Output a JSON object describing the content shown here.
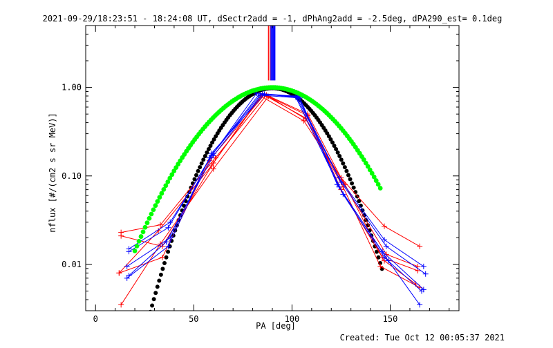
{
  "header": {
    "title": "2021-09-29/18:23:51 - 18:24:08 UT, dSectr2add = -1, dPhAng2add = -2.5deg, dPA290_est=  0.1deg"
  },
  "footer": {
    "created": "Created: Tue Oct 12 00:05:37 2021"
  },
  "chart_data": {
    "type": "line",
    "title": "2021-09-29/18:23:51 - 18:24:08 UT, dSectr2add = -1, dPhAng2add = -2.5deg, dPA290_est=  0.1deg",
    "xlabel": "PA [deg]",
    "ylabel": "nflux [#/(cm2 s sr MeV)]",
    "xlim": [
      -5,
      185
    ],
    "ylim": [
      0.003,
      5.0
    ],
    "yscale": "log",
    "x_ticks": [
      0,
      50,
      100,
      150
    ],
    "x_tick_labels": [
      "0",
      "50",
      "100",
      "150"
    ],
    "y_ticks": [
      0.01,
      0.1,
      1.0
    ],
    "y_tick_labels": [
      "0.01",
      "0.10",
      "1.00"
    ],
    "grid": false,
    "colors": {
      "red": "#ff0000",
      "blue": "#0000ff",
      "black": "#000000",
      "green": "#00ff00"
    },
    "red_series": [
      {
        "x": [
          13,
          33,
          61,
          87,
          108,
          125,
          147,
          165
        ],
        "y": [
          0.023,
          0.028,
          0.16,
          0.82,
          0.5,
          0.095,
          0.027,
          0.016
        ]
      },
      {
        "x": [
          13,
          34,
          60,
          85,
          107,
          126,
          148,
          164
        ],
        "y": [
          0.021,
          0.016,
          0.14,
          0.84,
          0.45,
          0.085,
          0.013,
          0.0095
        ]
      },
      {
        "x": [
          12,
          32,
          59,
          84,
          106,
          127,
          146,
          164
        ],
        "y": [
          0.008,
          0.024,
          0.13,
          0.8,
          0.42,
          0.08,
          0.012,
          0.0085
        ]
      },
      {
        "x": [
          12,
          34,
          58,
          86,
          108,
          125,
          147,
          163
        ],
        "y": [
          0.008,
          0.012,
          0.15,
          0.83,
          0.48,
          0.07,
          0.011,
          0.006
        ]
      },
      {
        "x": [
          13,
          33,
          60,
          88,
          107,
          126,
          145,
          165
        ],
        "y": [
          0.0035,
          0.017,
          0.12,
          0.79,
          0.44,
          0.075,
          0.0095,
          0.0055
        ]
      }
    ],
    "blue_series": [
      {
        "x": [
          17,
          38,
          60,
          82,
          103,
          124,
          147,
          167
        ],
        "y": [
          0.015,
          0.03,
          0.18,
          0.86,
          0.78,
          0.095,
          0.019,
          0.0095
        ]
      },
      {
        "x": [
          17,
          37,
          59,
          84,
          102,
          125,
          148,
          168
        ],
        "y": [
          0.014,
          0.026,
          0.17,
          0.83,
          0.8,
          0.085,
          0.016,
          0.0078
        ]
      },
      {
        "x": [
          16,
          38,
          58,
          83,
          104,
          123,
          146,
          167
        ],
        "y": [
          0.0095,
          0.02,
          0.16,
          0.82,
          0.76,
          0.08,
          0.014,
          0.0052
        ]
      },
      {
        "x": [
          17,
          36,
          60,
          85,
          103,
          126,
          147,
          166
        ],
        "y": [
          0.0075,
          0.018,
          0.17,
          0.85,
          0.79,
          0.062,
          0.012,
          0.005
        ]
      },
      {
        "x": [
          16,
          37,
          59,
          86,
          102,
          124,
          149,
          165
        ],
        "y": [
          0.007,
          0.016,
          0.18,
          0.84,
          0.77,
          0.075,
          0.011,
          0.0035
        ]
      }
    ],
    "black_fit": {
      "center": 90,
      "sigma": 18.2,
      "amplitude": 0.98,
      "x_range": [
        27,
        146
      ]
    },
    "green_fit": {
      "center": 90,
      "sigma": 24.0,
      "amplitude": 1.0,
      "x_range": [
        20,
        145
      ]
    },
    "spikes": {
      "red": [
        88,
        88.8
      ],
      "blue": [
        89.3,
        89.8,
        90.3,
        90.8,
        91.3
      ]
    }
  }
}
